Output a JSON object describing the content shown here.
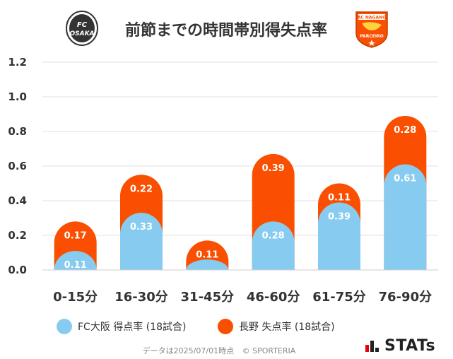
{
  "header": {
    "title": "前節までの時間帯別得失点率",
    "left_logo_text": "FC OSAKA",
    "right_logo_text": "AC NAGANO PARCEIRO"
  },
  "chart_data": {
    "type": "bar",
    "stacked": true,
    "categories": [
      "0-15分",
      "16-30分",
      "31-45分",
      "46-60分",
      "61-75分",
      "76-90分"
    ],
    "series": [
      {
        "name": "FC大阪 得点率 (18試合)",
        "color": "#87ccf0",
        "values": [
          0.11,
          0.33,
          0.06,
          0.28,
          0.39,
          0.61
        ],
        "labels": [
          "0.11",
          "0.33",
          "",
          "0.28",
          "0.39",
          "0.61"
        ]
      },
      {
        "name": "長野 失点率 (18試合)",
        "color": "#fa4f00",
        "values": [
          0.17,
          0.22,
          0.11,
          0.39,
          0.11,
          0.28
        ],
        "labels": [
          "0.17",
          "0.22",
          "0.11",
          "0.39",
          "0.11",
          "0.28"
        ]
      }
    ],
    "yticks": [
      "0.0",
      "0.2",
      "0.4",
      "0.6",
      "0.8",
      "1.0",
      "1.2"
    ],
    "ylim": [
      0,
      1.2
    ],
    "grid": true,
    "legend_position": "bottom"
  },
  "footer": {
    "note": "データは2025/07/01時点",
    "copyright": "© SPORTERIA"
  },
  "brand": {
    "name": "STATs"
  },
  "colors": {
    "fc_osaka": "#87ccf0",
    "nagano": "#fa4f00",
    "grid": "#e0e0e0",
    "text": "#333333"
  }
}
